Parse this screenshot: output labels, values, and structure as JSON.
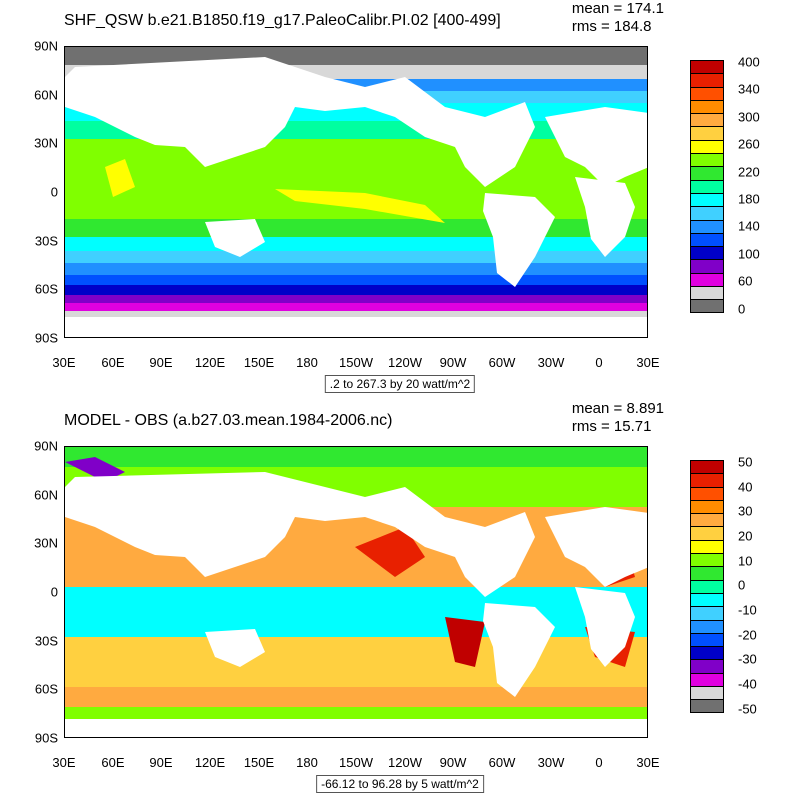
{
  "panels": [
    {
      "title": "SHF_QSW b.e21.B1850.f19_g17.PaleoCalibr.PI.02 [400-499]",
      "mean_label": "mean = 174.1",
      "rms_label": "rms = 184.8",
      "range_label": ".2 to 267.3 by 20 watt/m^2",
      "colorbar_labels": [
        "400",
        "340",
        "300",
        "260",
        "220",
        "180",
        "140",
        "100",
        "60",
        "0"
      ],
      "colorbar_colors": [
        "#c00000",
        "#e82000",
        "#ff5000",
        "#ff8c00",
        "#ffaa40",
        "#ffd040",
        "#ffff00",
        "#80ff00",
        "#30e830",
        "#00ffa0",
        "#00ffff",
        "#40d0ff",
        "#2090ff",
        "#0050ff",
        "#0000c8",
        "#8000c8",
        "#e000e0",
        "#d8d8d8",
        "#707070"
      ],
      "projection": "cylindrical equidistant",
      "ocean_fields": "zonal bands: high values in subtropics/tropics, low values near poles"
    },
    {
      "title": "MODEL - OBS (a.b27.03.mean.1984-2006.nc)",
      "mean_label": "mean = 8.891",
      "rms_label": "rms = 15.71",
      "range_label": "-66.12 to 96.28 by 5 watt/m^2",
      "colorbar_labels": [
        "50",
        "40",
        "30",
        "20",
        "10",
        "0",
        "-10",
        "-20",
        "-30",
        "-40",
        "-50"
      ],
      "colorbar_colors": [
        "#c00000",
        "#e82000",
        "#ff5000",
        "#ff8c00",
        "#ffaa40",
        "#ffd040",
        "#ffff00",
        "#80ff00",
        "#30e830",
        "#00ffa0",
        "#00ffff",
        "#40d0ff",
        "#2090ff",
        "#0050ff",
        "#0000c8",
        "#8000c8",
        "#e000e0",
        "#d8d8d8",
        "#707070"
      ],
      "projection": "cylindrical equidistant",
      "ocean_fields": "differences mostly positive (orange) in subtropics, negative (cyan) in tropics"
    }
  ],
  "lat_ticks": [
    "90N",
    "60N",
    "30N",
    "0",
    "30S",
    "60S",
    "90S"
  ],
  "lon_ticks": [
    "30E",
    "60E",
    "90E",
    "120E",
    "150E",
    "180",
    "150W",
    "120W",
    "90W",
    "60W",
    "30W",
    "0",
    "30E"
  ],
  "land_color": "#ffffff"
}
